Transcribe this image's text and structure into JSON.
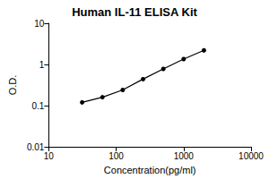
{
  "chart_data": {
    "type": "line",
    "title": "Human IL-11 ELISA Kit",
    "x_label": "Concentration(pg/ml)",
    "y_label": "O.D.",
    "x": [
      31.25,
      62.5,
      125,
      250,
      500,
      1000,
      2000
    ],
    "values": [
      0.12,
      0.16,
      0.24,
      0.44,
      0.78,
      1.35,
      2.2
    ],
    "color": "#000000",
    "marker": "circle",
    "line_style": "solid",
    "log": true,
    "xlim": [
      10,
      10000
    ],
    "xticks": [
      10,
      100,
      1000,
      10000
    ],
    "ylim": [
      0.01,
      10
    ],
    "yticks": [
      0.01,
      0.1,
      1,
      10
    ],
    "grid": false
  }
}
